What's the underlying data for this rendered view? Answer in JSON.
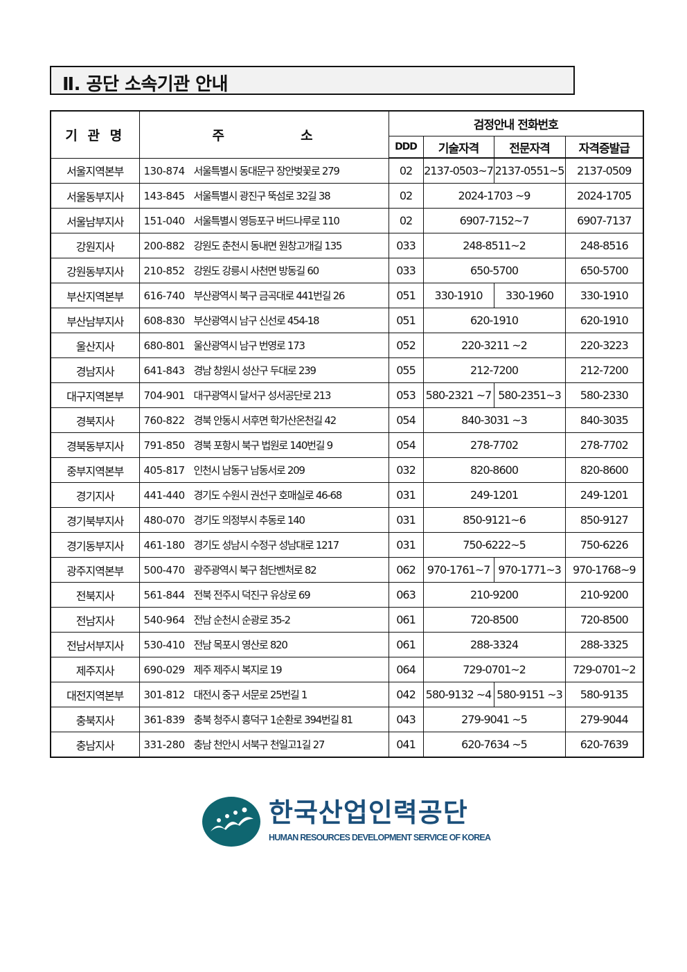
{
  "section_title": "Ⅱ. 공단 소속기관 안내",
  "table": {
    "headers": {
      "name": "기 관 명",
      "address": "주          소",
      "phone_group": "검정안내 전화번호",
      "ddd": "DDD",
      "technical": "기술자격",
      "professional": "전문자격",
      "certificate": "자격증발급"
    },
    "rows": [
      {
        "name": "서울지역본부",
        "zip": "130-874",
        "addr": "서울특별시 동대문구 장안벚꽃로 279",
        "ddd": "02",
        "tech": "2137-0503~7",
        "pro": "2137-0551~5",
        "cert": "2137-0509"
      },
      {
        "name": "서울동부지사",
        "zip": "143-845",
        "addr": "서울특별시 광진구 뚝섬로 32길 38",
        "ddd": "02",
        "tech": "2024-1703 ~9",
        "cert": "2024-1705"
      },
      {
        "name": "서울남부지사",
        "zip": "151-040",
        "addr": "서울특별시 영등포구 버드나루로 110",
        "ddd": "02",
        "tech": "6907-7152~7",
        "cert": "6907-7137"
      },
      {
        "name": "강원지사",
        "zip": "200-882",
        "addr": "강원도 춘천시 동내면 원창고개길 135",
        "ddd": "033",
        "tech": "248-8511~2",
        "cert": "248-8516"
      },
      {
        "name": "강원동부지사",
        "zip": "210-852",
        "addr": "강원도 강릉시 사천면 방동길 60",
        "ddd": "033",
        "tech": "650-5700",
        "cert": "650-5700"
      },
      {
        "name": "부산지역본부",
        "zip": "616-740",
        "addr": "부산광역시 북구 금곡대로 441번길 26",
        "ddd": "051",
        "tech": "330-1910",
        "pro": "330-1960",
        "cert": "330-1910"
      },
      {
        "name": "부산남부지사",
        "zip": "608-830",
        "addr": "부산광역시 남구 신선로 454-18",
        "ddd": "051",
        "tech": "620-1910",
        "cert": "620-1910"
      },
      {
        "name": "울산지사",
        "zip": "680-801",
        "addr": "울산광역시 남구 번영로 173",
        "ddd": "052",
        "tech": "220-3211 ~2",
        "cert": "220-3223"
      },
      {
        "name": "경남지사",
        "zip": "641-843",
        "addr": "경남 창원시 성산구 두대로 239",
        "ddd": "055",
        "tech": "212-7200",
        "cert": "212-7200"
      },
      {
        "name": "대구지역본부",
        "zip": "704-901",
        "addr": "대구광역시 달서구 성서공단로 213",
        "ddd": "053",
        "tech": "580-2321 ~7",
        "pro": "580-2351~3",
        "cert": "580-2330"
      },
      {
        "name": "경북지사",
        "zip": "760-822",
        "addr": "경북 안동시 서후면 학가산온천길 42",
        "ddd": "054",
        "tech": "840-3031 ~3",
        "cert": "840-3035"
      },
      {
        "name": "경북동부지사",
        "zip": "791-850",
        "addr": "경북 포항시 북구 법원로 140번길 9",
        "ddd": "054",
        "tech": "278-7702",
        "cert": "278-7702"
      },
      {
        "name": "중부지역본부",
        "zip": "405-817",
        "addr": "인천시 남동구 남동서로 209",
        "ddd": "032",
        "tech": "820-8600",
        "cert": "820-8600"
      },
      {
        "name": "경기지사",
        "zip": "441-440",
        "addr": "경기도 수원시 권선구 호매실로 46-68",
        "ddd": "031",
        "tech": "249-1201",
        "cert": "249-1201"
      },
      {
        "name": "경기북부지사",
        "zip": "480-070",
        "addr": "경기도 의정부시 추동로 140",
        "ddd": "031",
        "tech": "850-9121~6",
        "cert": "850-9127"
      },
      {
        "name": "경기동부지사",
        "zip": "461-180",
        "addr": "경기도 성남시 수정구 성남대로 1217",
        "ddd": "031",
        "tech": "750-6222~5",
        "cert": "750-6226"
      },
      {
        "name": "광주지역본부",
        "zip": "500-470",
        "addr": "광주광역시 북구 첨단벤처로 82",
        "ddd": "062",
        "tech": "970-1761~7",
        "pro": "970-1771~3",
        "cert": "970-1768~9"
      },
      {
        "name": "전북지사",
        "zip": "561-844",
        "addr": "전북 전주시 덕진구 유상로 69",
        "ddd": "063",
        "tech": "210-9200",
        "cert": "210-9200"
      },
      {
        "name": "전남지사",
        "zip": "540-964",
        "addr": "전남 순천시 순광로 35-2",
        "ddd": "061",
        "tech": "720-8500",
        "cert": "720-8500"
      },
      {
        "name": "전남서부지사",
        "zip": "530-410",
        "addr": "전남 목포시 영산로 820",
        "ddd": "061",
        "tech": "288-3324",
        "cert": "288-3325"
      },
      {
        "name": "제주지사",
        "zip": "690-029",
        "addr": "제주 제주시 복지로 19",
        "ddd": "064",
        "tech": "729-0701~2",
        "cert": "729-0701~2"
      },
      {
        "name": "대전지역본부",
        "zip": "301-812",
        "addr": "대전시 중구 서문로 25번길 1",
        "ddd": "042",
        "tech": "580-9132 ~4",
        "pro": "580-9151 ~3",
        "cert": "580-9135"
      },
      {
        "name": "충북지사",
        "zip": "361-839",
        "addr": "충북 청주시 흥덕구 1순환로 394번길 81",
        "ddd": "043",
        "tech": "279-9041 ~5",
        "cert": "279-9044"
      },
      {
        "name": "충남지사",
        "zip": "331-280",
        "addr": "충남 천안시 서북구 천일고1길 27",
        "ddd": "041",
        "tech": "620-7634 ~5",
        "cert": "620-7639"
      }
    ]
  },
  "logo": {
    "korean": "한국산업인력공단",
    "english": "HUMAN RESOURCES DEVELOPMENT SERVICE OF KOREA",
    "color": "#0f6670"
  }
}
